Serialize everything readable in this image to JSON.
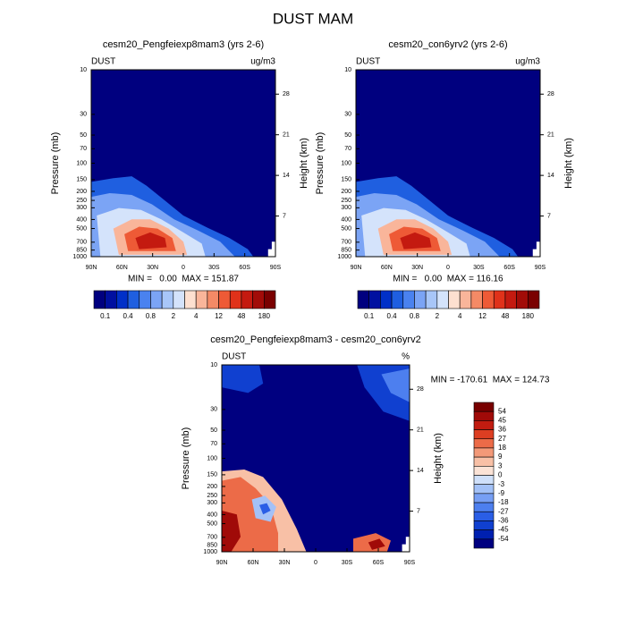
{
  "title": "DUST MAM",
  "chart_data": [
    {
      "type": "contour",
      "title": "cesm20_Pengfeiexp8mam3 (yrs 2-6)",
      "left_label": "DUST",
      "right_label": "ug/m3",
      "y_label": "Pressure (mb)",
      "y2_label": "Height (km)",
      "stats": "MIN =   0.00  MAX = 151.87",
      "xlim": [
        90,
        -90
      ],
      "xticks": [
        {
          "value": 90,
          "label": "90N"
        },
        {
          "value": 60,
          "label": "60N"
        },
        {
          "value": 30,
          "label": "30N"
        },
        0,
        {
          "value": -30,
          "label": "30S"
        },
        {
          "value": -60,
          "label": "60S"
        },
        {
          "value": -90,
          "label": "90S"
        }
      ],
      "ylim": [
        1000,
        10
      ],
      "log_y": true,
      "yticks": [
        10,
        30,
        50,
        70,
        100,
        150,
        200,
        250,
        300,
        400,
        500,
        700,
        850,
        1000
      ],
      "y2lim": [
        0,
        32.2
      ],
      "y2ticks": [
        7,
        14,
        21,
        28
      ],
      "colorbar": {
        "orientation": "horizontal",
        "colors": [
          "#00007f",
          "#0010a0",
          "#0030c8",
          "#1f5fe0",
          "#4a82ef",
          "#7ba4f5",
          "#a8c6f8",
          "#d4e3fb",
          "#fde0d0",
          "#f9b59a",
          "#f48a66",
          "#ee5a36",
          "#e0321a",
          "#c41a10",
          "#a20c08",
          "#7a0000"
        ],
        "ticks": [
          0.1,
          0.4,
          0.8,
          2,
          4,
          12,
          48,
          180
        ]
      }
    },
    {
      "type": "contour",
      "title": "cesm20_con6yrv2 (yrs 2-6)",
      "left_label": "DUST",
      "right_label": "ug/m3",
      "y_label": "Pressure (mb)",
      "y2_label": "Height (km)",
      "stats": "MIN =   0.00  MAX = 116.16",
      "xlim": [
        90,
        -90
      ],
      "xticks": [
        {
          "value": 90,
          "label": "90N"
        },
        {
          "value": 60,
          "label": "60N"
        },
        {
          "value": 30,
          "label": "30N"
        },
        0,
        {
          "value": -30,
          "label": "30S"
        },
        {
          "value": -60,
          "label": "60S"
        },
        {
          "value": -90,
          "label": "90S"
        }
      ],
      "ylim": [
        1000,
        10
      ],
      "log_y": true,
      "yticks": [
        10,
        30,
        50,
        70,
        100,
        150,
        200,
        250,
        300,
        400,
        500,
        700,
        850,
        1000
      ],
      "y2lim": [
        0,
        32.2
      ],
      "y2ticks": [
        7,
        14,
        21,
        28
      ],
      "colorbar": {
        "orientation": "horizontal",
        "colors": [
          "#00007f",
          "#0010a0",
          "#0030c8",
          "#1f5fe0",
          "#4a82ef",
          "#7ba4f5",
          "#a8c6f8",
          "#d4e3fb",
          "#fde0d0",
          "#f9b59a",
          "#f48a66",
          "#ee5a36",
          "#e0321a",
          "#c41a10",
          "#a20c08",
          "#7a0000"
        ],
        "ticks": [
          0.1,
          0.4,
          0.8,
          2,
          4,
          12,
          48,
          180
        ]
      }
    },
    {
      "type": "contour",
      "title": "cesm20_Pengfeiexp8mam3 - cesm20_con6yrv2",
      "left_label": "DUST",
      "right_label": "%",
      "y_label": "Pressure (mb)",
      "y2_label": "Height (km)",
      "stats": "MIN = -170.61  MAX = 124.73",
      "xlim": [
        90,
        -90
      ],
      "xticks": [
        {
          "value": 90,
          "label": "90N"
        },
        {
          "value": 60,
          "label": "60N"
        },
        {
          "value": 30,
          "label": "30N"
        },
        0,
        {
          "value": -30,
          "label": "30S"
        },
        {
          "value": -60,
          "label": "60S"
        },
        {
          "value": -90,
          "label": "90S"
        }
      ],
      "ylim": [
        1000,
        10
      ],
      "log_y": true,
      "yticks": [
        10,
        30,
        50,
        70,
        100,
        150,
        200,
        250,
        300,
        400,
        500,
        700,
        850,
        1000
      ],
      "y2lim": [
        0,
        32.2
      ],
      "y2ticks": [
        7,
        14,
        21,
        28
      ],
      "colorbar": {
        "orientation": "vertical",
        "colors": [
          "#780000",
          "#a00a08",
          "#c21c10",
          "#dd3e22",
          "#ec6b48",
          "#f39978",
          "#f8c0a6",
          "#fbe3d6",
          "#cfe0fa",
          "#a3c1f7",
          "#779ff4",
          "#4d7fef",
          "#2a5ee6",
          "#1040d0",
          "#0020b0",
          "#000080"
        ],
        "ticks": [
          54,
          45,
          36,
          27,
          18,
          9,
          3,
          0,
          -3,
          -9,
          -18,
          -27,
          -36,
          -45,
          -54
        ]
      }
    }
  ]
}
